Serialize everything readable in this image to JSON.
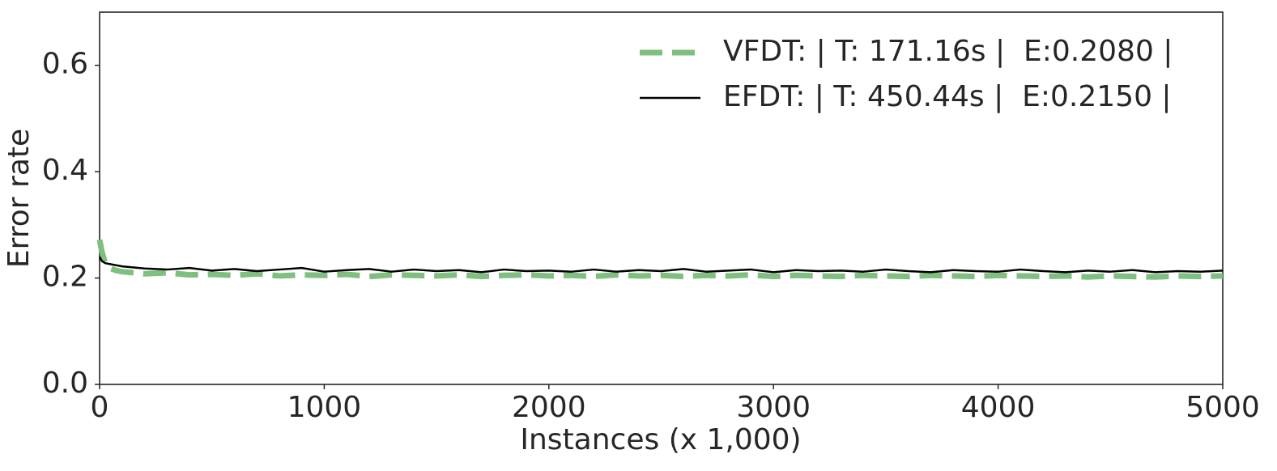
{
  "chart_data": {
    "type": "line",
    "xlabel": "Instances (x 1,000)",
    "ylabel": "Error rate",
    "x": [
      0,
      10,
      25,
      50,
      75,
      100,
      200,
      300,
      400,
      500,
      600,
      700,
      800,
      900,
      1000,
      1100,
      1200,
      1300,
      1400,
      1500,
      1600,
      1700,
      1800,
      1900,
      2000,
      2100,
      2200,
      2300,
      2400,
      2500,
      2600,
      2700,
      2800,
      2900,
      3000,
      3100,
      3200,
      3300,
      3400,
      3500,
      3600,
      3700,
      3800,
      3900,
      4000,
      4100,
      4200,
      4300,
      4400,
      4500,
      4600,
      4700,
      4800,
      4900,
      5000
    ],
    "series": [
      {
        "name": "VFDT: | T: 171.16s |  E:0.2080 |",
        "color": "#7fbf7f",
        "linestyle": "dashed",
        "values": [
          0.272,
          0.25,
          0.228,
          0.218,
          0.214,
          0.212,
          0.208,
          0.21,
          0.206,
          0.207,
          0.205,
          0.208,
          0.204,
          0.206,
          0.205,
          0.207,
          0.203,
          0.206,
          0.205,
          0.204,
          0.206,
          0.203,
          0.205,
          0.206,
          0.204,
          0.205,
          0.203,
          0.206,
          0.204,
          0.205,
          0.203,
          0.205,
          0.204,
          0.206,
          0.203,
          0.205,
          0.204,
          0.203,
          0.205,
          0.204,
          0.203,
          0.205,
          0.204,
          0.203,
          0.205,
          0.204,
          0.203,
          0.204,
          0.202,
          0.204,
          0.203,
          0.202,
          0.204,
          0.203,
          0.204
        ]
      },
      {
        "name": "EFDT: | T: 450.44s |  E:0.2150 |",
        "color": "#000000",
        "linestyle": "solid",
        "values": [
          0.24,
          0.232,
          0.228,
          0.226,
          0.224,
          0.222,
          0.218,
          0.216,
          0.219,
          0.214,
          0.217,
          0.213,
          0.216,
          0.219,
          0.212,
          0.215,
          0.217,
          0.212,
          0.216,
          0.213,
          0.215,
          0.211,
          0.216,
          0.213,
          0.214,
          0.212,
          0.216,
          0.212,
          0.215,
          0.213,
          0.217,
          0.212,
          0.214,
          0.216,
          0.211,
          0.215,
          0.213,
          0.214,
          0.212,
          0.216,
          0.213,
          0.211,
          0.215,
          0.213,
          0.212,
          0.216,
          0.213,
          0.211,
          0.214,
          0.212,
          0.215,
          0.211,
          0.213,
          0.212,
          0.214
        ]
      }
    ],
    "xlim": [
      0,
      5000
    ],
    "xticks": [
      0,
      1000,
      2000,
      3000,
      4000,
      5000
    ],
    "ylim": [
      0,
      0.7
    ],
    "yticks": [
      {
        "value": 0,
        "label": "0.0"
      },
      0.2,
      0.4,
      0.6
    ],
    "grid": false,
    "legend": "upper right"
  }
}
